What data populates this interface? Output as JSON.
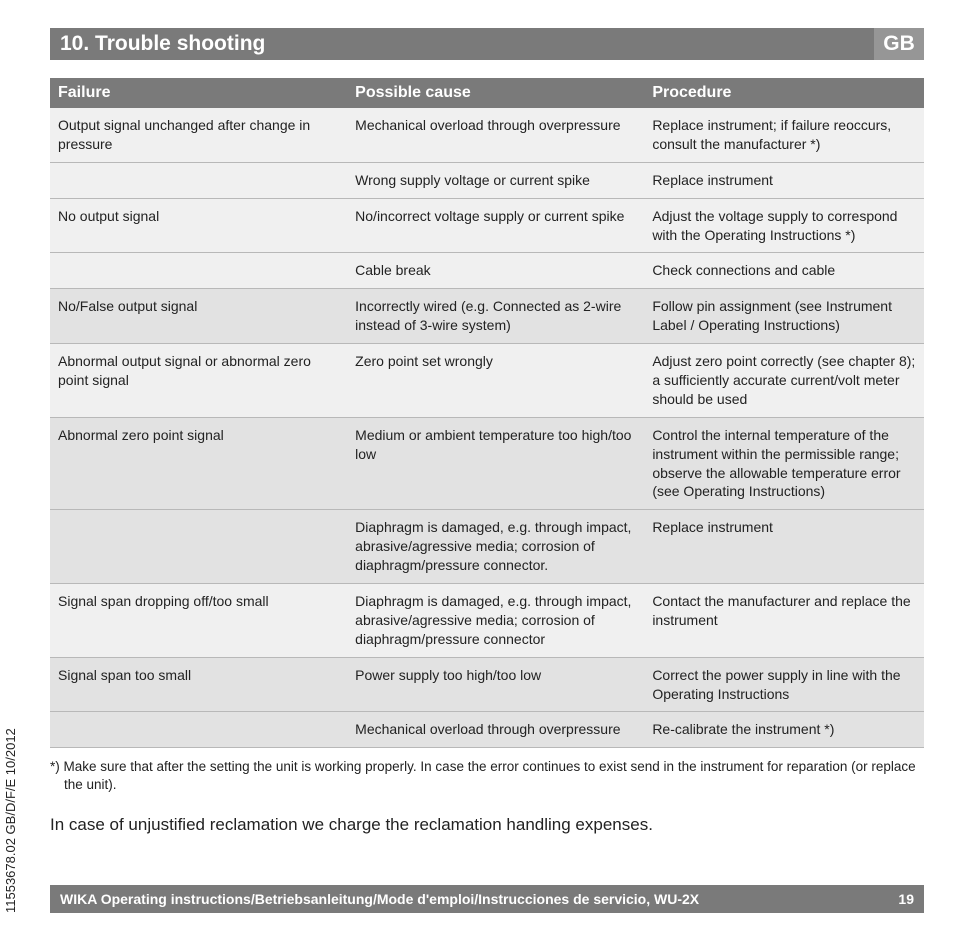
{
  "title_bar": {
    "heading": "10. Trouble shooting",
    "lang": "GB"
  },
  "table": {
    "headers": {
      "failure": "Failure",
      "cause": "Possible cause",
      "procedure": "Procedure"
    },
    "rows": [
      {
        "shade": "light",
        "failure": "Output signal unchanged after change in pressure",
        "cause": "Mechanical overload through overpressure",
        "procedure": "Replace instrument; if failure reoccurs, consult the manufacturer *)"
      },
      {
        "shade": "light",
        "failure": "",
        "cause": "Wrong supply voltage or current spike",
        "procedure": "Replace instrument"
      },
      {
        "shade": "light",
        "failure": "No output signal",
        "cause": "No/incorrect voltage supply or current spike",
        "procedure": "Adjust the voltage supply to correspond with the Operating Instructions *)"
      },
      {
        "shade": "light",
        "failure": "",
        "cause": "Cable break",
        "procedure": "Check connections and cable"
      },
      {
        "shade": "dark",
        "failure": "No/False output signal",
        "cause": "Incorrectly wired (e.g. Connected as 2-wire instead of 3-wire system)",
        "procedure": "Follow pin assignment (see Instrument Label / Operating Instructions)"
      },
      {
        "shade": "light",
        "failure": "Abnormal output signal or abnormal zero point signal",
        "cause": "Zero point set wrongly",
        "procedure": "Adjust zero point correctly (see chapter 8); a sufficiently accurate current/volt meter should be used"
      },
      {
        "shade": "dark",
        "failure": "Abnormal zero point signal",
        "cause": "Medium or ambient temperature too high/too low",
        "procedure": "Control the internal temperature of the instrument within the permissible range; observe the allowable temperature error (see Operating Instructions)"
      },
      {
        "shade": "dark",
        "failure": "",
        "cause": "Diaphragm is damaged, e.g. through impact, abrasive/agressive media; corrosion of diaphragm/pressure connector.",
        "procedure": "Replace instrument"
      },
      {
        "shade": "light",
        "failure": "Signal span dropping off/too small",
        "cause": "Diaphragm is damaged, e.g. through impact, abrasive/agressive media; corrosion of diaphragm/pressure connector",
        "procedure": "Contact the manufacturer and replace the instrument"
      },
      {
        "shade": "dark",
        "failure": "Signal span too small",
        "cause": "Power supply too high/too low",
        "procedure": "Correct the power supply in line with the Operating Instructions"
      },
      {
        "shade": "dark",
        "failure": "",
        "cause": "Mechanical overload through overpressure",
        "procedure": "Re-calibrate the instrument *)"
      }
    ]
  },
  "footnote": "*) Make sure that after the setting the unit is working properly. In case the error continues to exist send in the instrument for reparation (or replace the unit).",
  "reclamation": "In case of unjustified reclamation we charge the reclamation handling expenses.",
  "bottom_bar": {
    "text": "WIKA Operating instructions/Betriebsanleitung/Mode d'emploi/Instrucciones de servicio, WU-2X",
    "page": "19"
  },
  "side_label": "11553678.02 GB/D/F/E 10/2012"
}
